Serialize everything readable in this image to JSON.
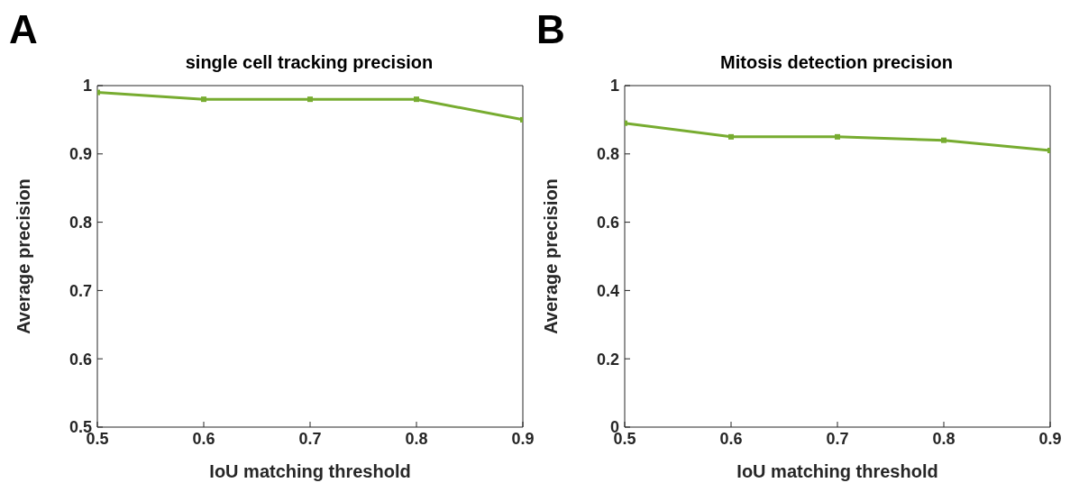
{
  "chart_data": [
    {
      "type": "line",
      "title": "single cell tracking precision",
      "xlabel": "IoU matching threshold",
      "ylabel": "Average precision",
      "annotations": [
        "A"
      ],
      "x": [
        0.5,
        0.6,
        0.7,
        0.8,
        0.9
      ],
      "series": [
        {
          "color": "#77ac30",
          "values": [
            0.99,
            0.98,
            0.98,
            0.98,
            0.95
          ]
        }
      ],
      "xlim": [
        0.5,
        0.9
      ],
      "xticks": [
        0.5,
        0.6,
        0.7,
        0.8,
        0.9
      ],
      "ylim": [
        0.5,
        1
      ],
      "yticks": [
        0.5,
        0.6,
        0.7,
        0.8,
        0.9,
        1
      ],
      "grid": false,
      "marker": "square",
      "line_style": "solid"
    },
    {
      "type": "line",
      "title": "Mitosis detection precision",
      "xlabel": "IoU matching threshold",
      "ylabel": "Average precision",
      "annotations": [
        "B"
      ],
      "x": [
        0.5,
        0.6,
        0.7,
        0.8,
        0.9
      ],
      "series": [
        {
          "color": "#77ac30",
          "values": [
            0.89,
            0.85,
            0.85,
            0.84,
            0.81
          ]
        }
      ],
      "xlim": [
        0.5,
        0.9
      ],
      "xticks": [
        0.5,
        0.6,
        0.7,
        0.8,
        0.9
      ],
      "ylim": [
        0,
        1
      ],
      "yticks": [
        0,
        0.2,
        0.4,
        0.6,
        0.8,
        1
      ],
      "grid": false,
      "marker": "square",
      "line_style": "solid"
    }
  ]
}
